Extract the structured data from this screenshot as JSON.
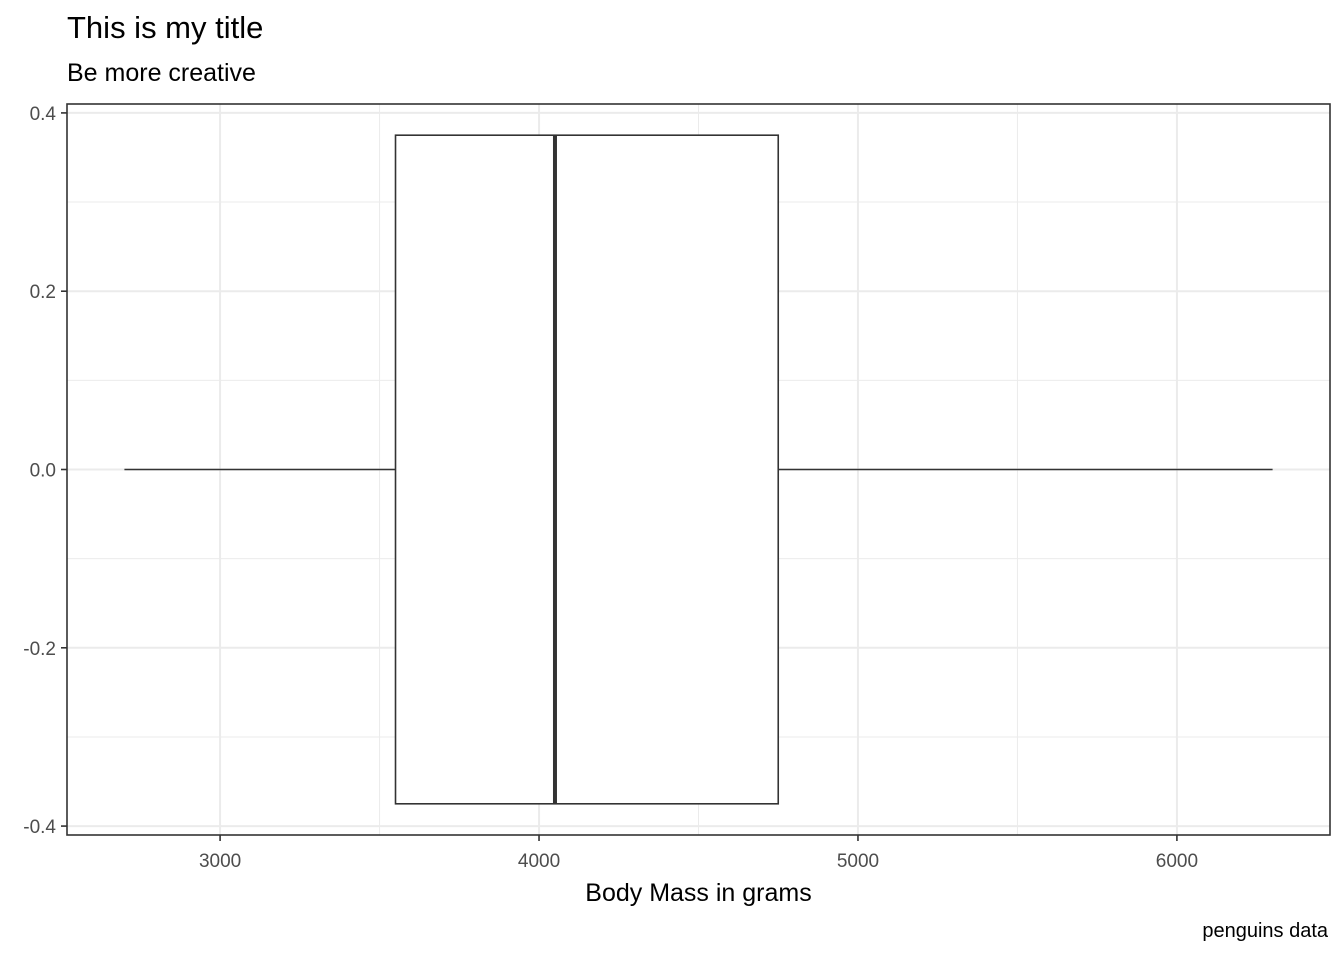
{
  "chart_data": {
    "type": "boxplot",
    "title": "This is my title",
    "subtitle": "Be more creative",
    "caption": "penguins data",
    "xlabel": "Body Mass in grams",
    "ylabel": "",
    "x_ticks": [
      3000,
      4000,
      5000,
      6000
    ],
    "y_ticks": [
      -0.4,
      -0.2,
      0.0,
      0.2,
      0.4
    ],
    "y_tick_labels": [
      "-0.4",
      "-0.2",
      "0.0",
      "0.2",
      "0.4"
    ],
    "xlim": [
      2520,
      6480
    ],
    "ylim": [
      -0.41,
      0.41
    ],
    "box": {
      "min": 2700,
      "q1": 3550,
      "median": 4050,
      "q3": 4750,
      "max": 6300,
      "y_center": 0.0,
      "half_width": 0.375
    },
    "grid": true,
    "colors": {
      "box_line": "#333333",
      "grid": "#ebebeb",
      "panel_border": "#333333"
    }
  }
}
